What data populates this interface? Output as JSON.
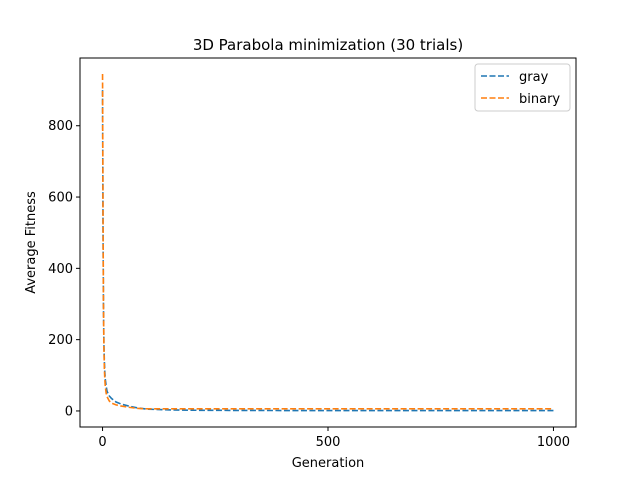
{
  "chart_data": {
    "type": "line",
    "title": "3D Parabola minimization (30 trials)",
    "xlabel": "Generation",
    "ylabel": "Average Fitness",
    "xlim": [
      -50,
      1050
    ],
    "ylim": [
      -45,
      990
    ],
    "xticks": [
      0,
      500,
      1000
    ],
    "yticks": [
      0,
      200,
      400,
      600,
      800
    ],
    "grid": false,
    "legend": "top-right",
    "series": [
      {
        "name": "gray",
        "color": "#1f77b4",
        "x": [
          0,
          1,
          2,
          3,
          4,
          5,
          6,
          8,
          10,
          15,
          20,
          30,
          40,
          60,
          80,
          100,
          150,
          200,
          300,
          400,
          500,
          600,
          700,
          800,
          900,
          1000
        ],
        "y": [
          900,
          520,
          300,
          190,
          140,
          110,
          90,
          70,
          55,
          42,
          35,
          25,
          20,
          13,
          8,
          5,
          3,
          2,
          1.5,
          1.2,
          1,
          1,
          1,
          1,
          1,
          1
        ]
      },
      {
        "name": "binary",
        "color": "#ff7f0e",
        "x": [
          0,
          1,
          2,
          3,
          4,
          5,
          6,
          8,
          10,
          15,
          20,
          30,
          40,
          60,
          80,
          100,
          150,
          200,
          300,
          400,
          500,
          600,
          700,
          800,
          900,
          1000
        ],
        "y": [
          945,
          560,
          300,
          180,
          120,
          90,
          70,
          50,
          40,
          28,
          22,
          17,
          14,
          10,
          7,
          6,
          6,
          6,
          6,
          6,
          6,
          6,
          6,
          6,
          6,
          6
        ]
      }
    ]
  }
}
